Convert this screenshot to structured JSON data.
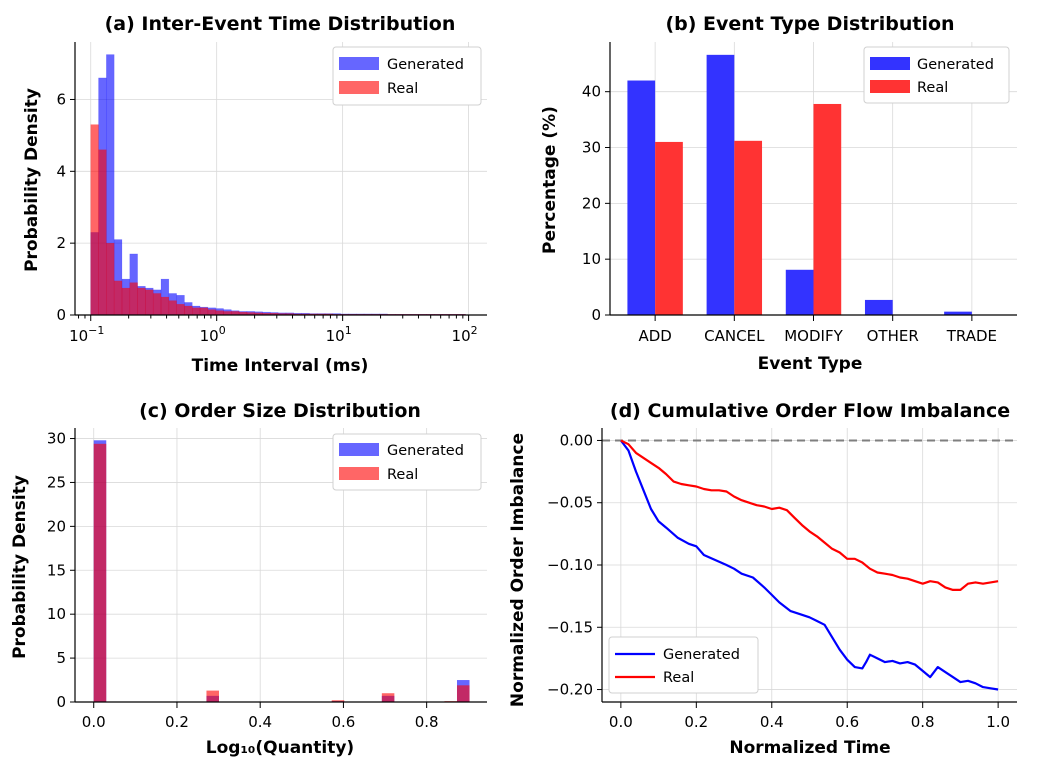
{
  "colors": {
    "generated": "#0000ff",
    "real": "#ff0000",
    "generated_bar": "#3333ff",
    "real_bar": "#ff3333",
    "zero_line": "#7f7f7f"
  },
  "chart_data": [
    {
      "id": "a",
      "type": "bar",
      "title": "(a) Inter-Event Time Distribution",
      "xlabel": "Time Interval (ms)",
      "ylabel": "Probability Density",
      "xscale": "log",
      "xlim": [
        0.075,
        140
      ],
      "ylim": [
        0,
        7.6
      ],
      "yticks": [
        0,
        2,
        4,
        6
      ],
      "xticks": [
        0.1,
        1,
        10,
        100
      ],
      "xtick_labels": [
        [
          "10",
          "−1"
        ],
        [
          "10",
          "0"
        ],
        [
          "10",
          "1"
        ],
        [
          "10",
          "2"
        ]
      ],
      "grid": true,
      "legend": {
        "position": "top-right",
        "entries": [
          "Generated",
          "Real"
        ]
      },
      "bin_edges_log10": [
        -1.0,
        -0.938,
        -0.876,
        -0.814,
        -0.752,
        -0.69,
        -0.628,
        -0.566,
        -0.504,
        -0.442,
        -0.38,
        -0.318,
        -0.256,
        -0.194,
        -0.132,
        -0.07,
        -0.008,
        0.054,
        0.116,
        0.178,
        0.24,
        0.302,
        0.364,
        0.426,
        0.488,
        0.55,
        0.612,
        0.674,
        0.736,
        0.798,
        0.86,
        0.922,
        0.984,
        1.046,
        1.108,
        1.17,
        1.232,
        1.294,
        1.356,
        1.418,
        1.48,
        1.542,
        1.604,
        1.666,
        1.728,
        1.79,
        1.852,
        1.914,
        1.976
      ],
      "series": [
        {
          "name": "Generated",
          "values": [
            2.3,
            6.6,
            7.25,
            2.1,
            1.0,
            1.7,
            0.8,
            0.75,
            0.7,
            1.0,
            0.6,
            0.55,
            0.35,
            0.25,
            0.22,
            0.2,
            0.18,
            0.15,
            0.12,
            0.1,
            0.1,
            0.09,
            0.08,
            0.07,
            0.06,
            0.06,
            0.05,
            0.05,
            0.04,
            0.04,
            0.04,
            0.04,
            0.03,
            0.03,
            0.03,
            0.03,
            0.03,
            0.03,
            0.02,
            0.02,
            0.02,
            0.02,
            0.02,
            0.02,
            0.02,
            0.02,
            0.02,
            0.02
          ]
        },
        {
          "name": "Real",
          "values": [
            5.3,
            4.6,
            2.0,
            0.95,
            0.75,
            0.9,
            0.75,
            0.7,
            0.6,
            0.5,
            0.4,
            0.3,
            0.25,
            0.2,
            0.2,
            0.15,
            0.12,
            0.1,
            0.1,
            0.08,
            0.07,
            0.06,
            0.05,
            0.05,
            0.04,
            0.04,
            0.03,
            0.03,
            0.03,
            0.03,
            0.03,
            0.02,
            0.02,
            0.02,
            0.02,
            0.02,
            0.02,
            0.02,
            0.02,
            0.02,
            0.02,
            0.02,
            0.02,
            0.02,
            0.02,
            0.02,
            0.02,
            0.02
          ]
        }
      ]
    },
    {
      "id": "b",
      "type": "bar",
      "title": "(b) Event Type Distribution",
      "xlabel": "Event Type",
      "ylabel": "Percentage (%)",
      "categories": [
        "ADD",
        "CANCEL",
        "MODIFY",
        "OTHER",
        "TRADE"
      ],
      "ylim": [
        0,
        48.9
      ],
      "yticks": [
        0,
        10,
        20,
        30,
        40
      ],
      "grid": true,
      "legend": {
        "position": "top-right",
        "entries": [
          "Generated",
          "Real"
        ]
      },
      "series": [
        {
          "name": "Generated",
          "values": [
            42.0,
            46.6,
            8.1,
            2.7,
            0.6
          ]
        },
        {
          "name": "Real",
          "values": [
            31.0,
            31.2,
            37.8,
            0.0,
            0.0
          ]
        }
      ]
    },
    {
      "id": "c",
      "type": "bar",
      "title": "(c) Order Size Distribution",
      "xlabel": "Log₁₀(Quantity)",
      "ylabel": "Probability Density",
      "xlim": [
        -0.045,
        0.945
      ],
      "ylim": [
        0,
        31.2
      ],
      "xticks": [
        0.0,
        0.2,
        0.4,
        0.6,
        0.8
      ],
      "xtick_labels": [
        "0.0",
        "0.2",
        "0.4",
        "0.6",
        "0.8"
      ],
      "yticks": [
        0,
        5,
        10,
        15,
        20,
        25,
        30
      ],
      "grid": true,
      "legend": {
        "position": "top-right",
        "entries": [
          "Generated",
          "Real"
        ]
      },
      "bin_edges": [
        0.0,
        0.0301,
        0.0602,
        0.0903,
        0.1204,
        0.1505,
        0.1806,
        0.2107,
        0.2408,
        0.2709,
        0.301,
        0.3311,
        0.3612,
        0.3913,
        0.4214,
        0.4515,
        0.4816,
        0.5117,
        0.5418,
        0.5719,
        0.602,
        0.6321,
        0.6622,
        0.6923,
        0.7224,
        0.7525,
        0.7826,
        0.8127,
        0.8428,
        0.8729,
        0.903
      ],
      "series": [
        {
          "name": "Generated",
          "values": [
            29.8,
            0,
            0,
            0,
            0,
            0,
            0,
            0,
            0,
            0.7,
            0,
            0,
            0,
            0,
            0,
            0,
            0,
            0,
            0,
            0.1,
            0,
            0,
            0,
            0.7,
            0,
            0,
            0,
            0,
            0,
            2.5
          ]
        },
        {
          "name": "Real",
          "values": [
            29.4,
            0,
            0,
            0,
            0,
            0,
            0,
            0,
            0,
            1.3,
            0,
            0,
            0,
            0,
            0,
            0,
            0,
            0,
            0,
            0.2,
            0,
            0,
            0,
            1.0,
            0,
            0,
            0,
            0,
            0.1,
            1.9
          ]
        }
      ]
    },
    {
      "id": "d",
      "type": "line",
      "title": "(d) Cumulative Order Flow Imbalance",
      "xlabel": "Normalized Time",
      "ylabel": "Normalized Order Imbalance",
      "xlim": [
        -0.05,
        1.05
      ],
      "ylim": [
        -0.21,
        0.01
      ],
      "xticks": [
        0.0,
        0.2,
        0.4,
        0.6,
        0.8,
        1.0
      ],
      "xtick_labels": [
        "0.0",
        "0.2",
        "0.4",
        "0.6",
        "0.8",
        "1.0"
      ],
      "yticks": [
        0.0,
        -0.05,
        -0.1,
        -0.15,
        -0.2
      ],
      "ytick_labels": [
        "0.00",
        "−0.05",
        "−0.10",
        "−0.15",
        "−0.20"
      ],
      "grid": true,
      "reference_line": {
        "y": 0,
        "style": "dashed"
      },
      "legend": {
        "position": "bottom-left",
        "entries": [
          "Generated",
          "Real"
        ]
      },
      "series": [
        {
          "name": "Generated",
          "x": [
            0,
            0.02,
            0.04,
            0.06,
            0.08,
            0.1,
            0.12,
            0.15,
            0.18,
            0.2,
            0.22,
            0.25,
            0.28,
            0.3,
            0.32,
            0.35,
            0.38,
            0.4,
            0.42,
            0.45,
            0.48,
            0.5,
            0.52,
            0.54,
            0.56,
            0.58,
            0.6,
            0.62,
            0.64,
            0.65,
            0.66,
            0.68,
            0.7,
            0.72,
            0.74,
            0.76,
            0.78,
            0.8,
            0.82,
            0.84,
            0.86,
            0.88,
            0.9,
            0.92,
            0.94,
            0.96,
            0.98,
            1.0
          ],
          "y": [
            0,
            -0.008,
            -0.025,
            -0.04,
            -0.055,
            -0.065,
            -0.07,
            -0.078,
            -0.083,
            -0.085,
            -0.092,
            -0.096,
            -0.1,
            -0.103,
            -0.107,
            -0.11,
            -0.118,
            -0.124,
            -0.13,
            -0.137,
            -0.14,
            -0.142,
            -0.145,
            -0.148,
            -0.158,
            -0.168,
            -0.176,
            -0.182,
            -0.183,
            -0.178,
            -0.172,
            -0.175,
            -0.178,
            -0.177,
            -0.179,
            -0.178,
            -0.18,
            -0.185,
            -0.19,
            -0.182,
            -0.186,
            -0.19,
            -0.194,
            -0.193,
            -0.195,
            -0.198,
            -0.199,
            -0.2
          ]
        },
        {
          "name": "Real",
          "x": [
            0,
            0.02,
            0.04,
            0.06,
            0.08,
            0.1,
            0.12,
            0.14,
            0.16,
            0.18,
            0.2,
            0.22,
            0.24,
            0.26,
            0.28,
            0.3,
            0.32,
            0.34,
            0.36,
            0.38,
            0.4,
            0.42,
            0.44,
            0.46,
            0.48,
            0.5,
            0.52,
            0.54,
            0.56,
            0.58,
            0.6,
            0.62,
            0.64,
            0.66,
            0.68,
            0.7,
            0.72,
            0.74,
            0.76,
            0.78,
            0.8,
            0.82,
            0.84,
            0.86,
            0.88,
            0.9,
            0.92,
            0.94,
            0.96,
            0.98,
            1.0
          ],
          "y": [
            0,
            -0.003,
            -0.01,
            -0.014,
            -0.018,
            -0.022,
            -0.027,
            -0.033,
            -0.035,
            -0.036,
            -0.037,
            -0.039,
            -0.04,
            -0.04,
            -0.041,
            -0.045,
            -0.048,
            -0.05,
            -0.052,
            -0.053,
            -0.055,
            -0.054,
            -0.056,
            -0.062,
            -0.068,
            -0.073,
            -0.077,
            -0.082,
            -0.087,
            -0.09,
            -0.095,
            -0.095,
            -0.098,
            -0.103,
            -0.106,
            -0.107,
            -0.108,
            -0.11,
            -0.111,
            -0.113,
            -0.115,
            -0.113,
            -0.114,
            -0.118,
            -0.12,
            -0.12,
            -0.115,
            -0.114,
            -0.115,
            -0.114,
            -0.113
          ]
        }
      ]
    }
  ]
}
